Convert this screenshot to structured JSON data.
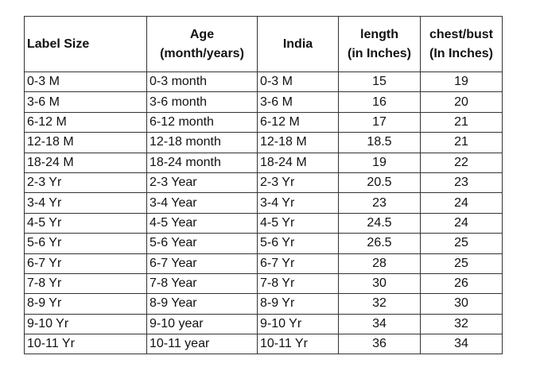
{
  "table": {
    "header": [
      [
        "Label Size"
      ],
      [
        "Age",
        "(month/years)"
      ],
      [
        "India"
      ],
      [
        "length",
        "(in Inches)"
      ],
      [
        "chest/bust",
        "(In Inches)"
      ]
    ],
    "rows": [
      [
        "0-3 M",
        "0-3 month",
        "0-3 M",
        "15",
        "19"
      ],
      [
        "3-6 M",
        "3-6 month",
        "3-6 M",
        "16",
        "20"
      ],
      [
        "6-12 M",
        "6-12 month",
        "6-12 M",
        "17",
        "21"
      ],
      [
        "12-18 M",
        "12-18 month",
        "12-18 M",
        "18.5",
        "21"
      ],
      [
        "18-24 M",
        "18-24 month",
        "18-24 M",
        "19",
        "22"
      ],
      [
        "2-3 Yr",
        "2-3 Year",
        "2-3 Yr",
        "20.5",
        "23"
      ],
      [
        "3-4 Yr",
        "3-4 Year",
        "3-4 Yr",
        "23",
        "24"
      ],
      [
        "4-5 Yr",
        "4-5 Year",
        "4-5 Yr",
        "24.5",
        "24"
      ],
      [
        "5-6 Yr",
        "5-6 Year",
        "5-6 Yr",
        "26.5",
        "25"
      ],
      [
        "6-7 Yr",
        "6-7 Year",
        "6-7 Yr",
        "28",
        "25"
      ],
      [
        "7-8 Yr",
        "7-8 Year",
        "7-8 Yr",
        "30",
        "26"
      ],
      [
        "8-9 Yr",
        "8-9 Year",
        "8-9 Yr",
        "32",
        "30"
      ],
      [
        "9-10 Yr",
        "9-10 year",
        "9-10 Yr",
        "34",
        "32"
      ],
      [
        "10-11 Yr",
        "10-11 year",
        "10-11 Yr",
        "36",
        "34"
      ]
    ]
  }
}
